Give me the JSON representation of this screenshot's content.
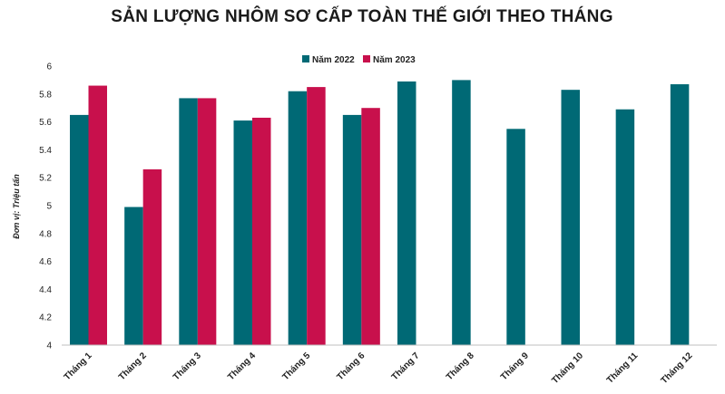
{
  "chart_data": {
    "type": "bar",
    "title": "SẢN LƯỢNG NHÔM SƠ CẤP TOÀN THẾ GIỚI THEO THÁNG",
    "xlabel": "",
    "ylabel": "Đơn vị: Triệu tấn",
    "ylim": [
      4,
      6
    ],
    "yticks": [
      "4",
      "4.2",
      "4.4",
      "4.6",
      "4.8",
      "5",
      "5.2",
      "5.4",
      "5.6",
      "5.8",
      "6"
    ],
    "categories": [
      "Tháng 1",
      "Tháng 2",
      "Tháng 3",
      "Tháng 4",
      "Tháng 5",
      "Tháng 6",
      "Tháng 7",
      "Tháng 8",
      "Tháng 9",
      "Tháng 10",
      "Tháng 11",
      "Tháng 12"
    ],
    "series": [
      {
        "name": "Năm 2022",
        "color": "#006975",
        "values": [
          5.65,
          4.99,
          5.77,
          5.61,
          5.82,
          5.65,
          5.89,
          5.9,
          5.55,
          5.83,
          5.69,
          5.87
        ]
      },
      {
        "name": "Năm 2023",
        "color": "#c8104c",
        "values": [
          5.86,
          5.26,
          5.77,
          5.63,
          5.85,
          5.7,
          null,
          null,
          null,
          null,
          null,
          null
        ]
      }
    ],
    "legend_position": "top-center",
    "grid": false
  }
}
